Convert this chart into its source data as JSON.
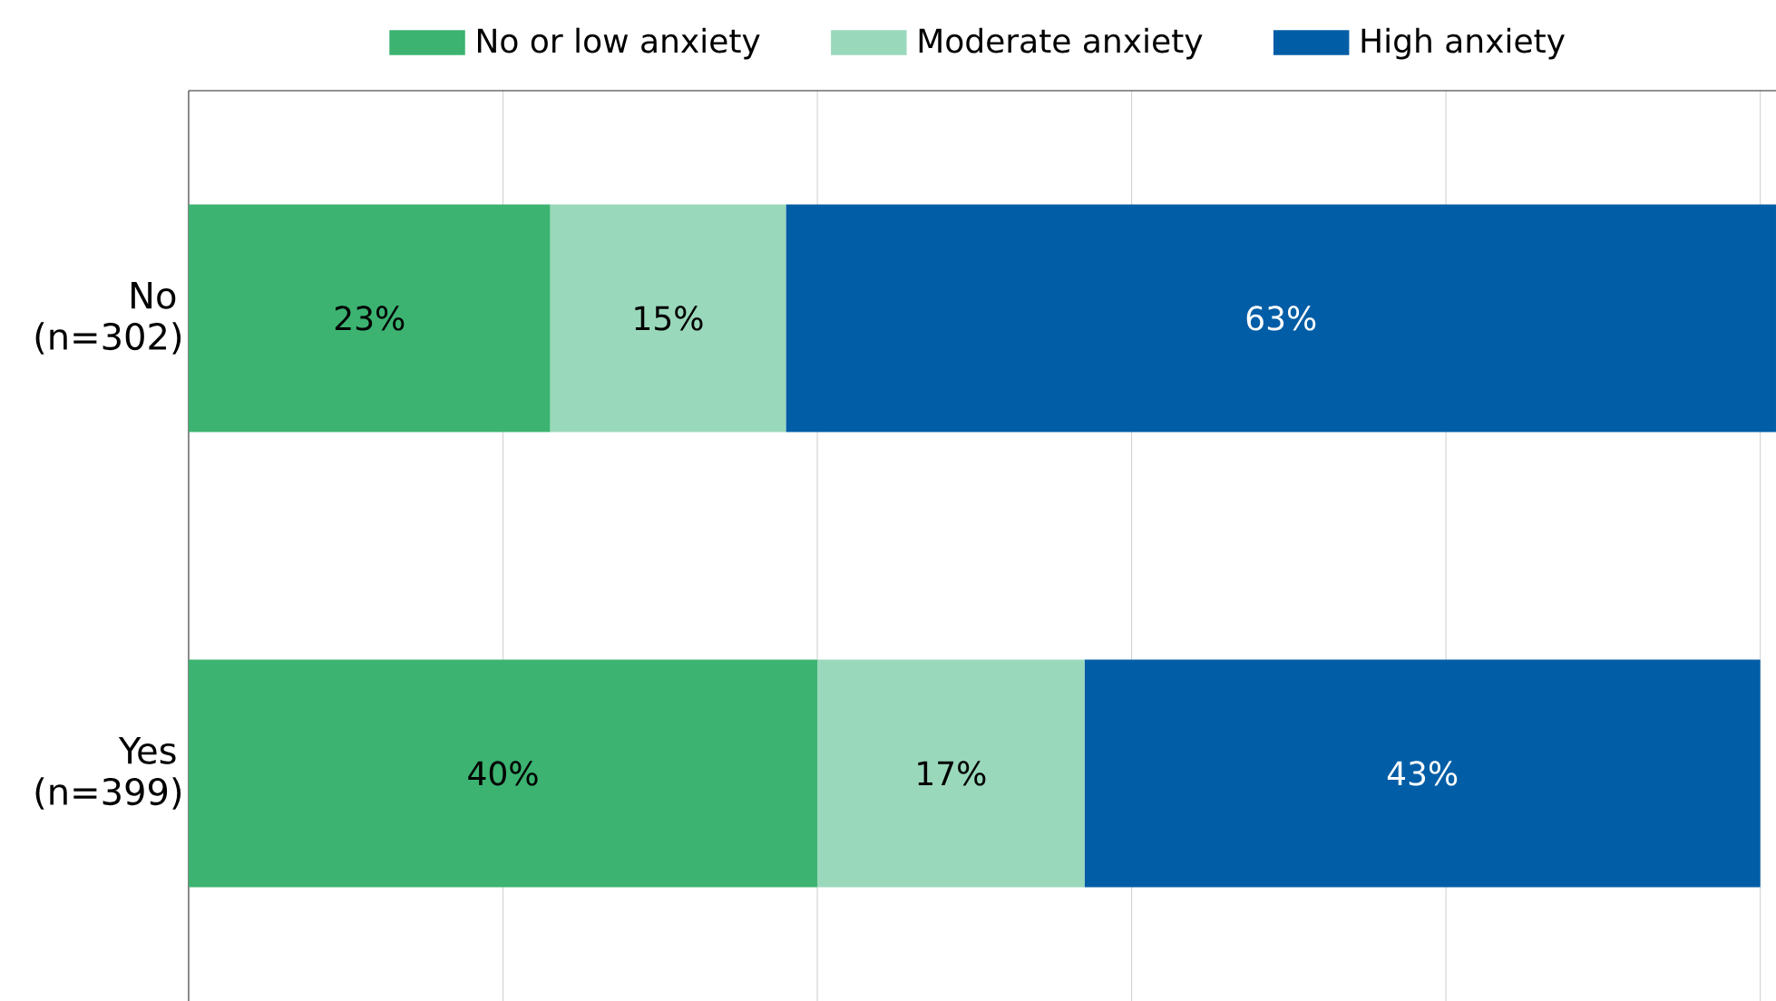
{
  "chart_data": {
    "type": "bar",
    "orientation": "horizontal",
    "stacked": true,
    "categories": [
      "No (n=302)",
      "Yes (n=399)"
    ],
    "series": [
      {
        "name": "No or low anxiety",
        "color": "#3cb371",
        "values": [
          23,
          40
        ],
        "value_labels": [
          "23%",
          "40%"
        ]
      },
      {
        "name": "Moderate anxiety",
        "color": "#9ad8bb",
        "values": [
          15,
          17
        ],
        "value_labels": [
          "15%",
          "17%"
        ]
      },
      {
        "name": "High anxiety",
        "color": "#005da6",
        "values": [
          63,
          43
        ],
        "value_labels": [
          "63%",
          "43%"
        ]
      }
    ],
    "grid": "x",
    "legend": "top",
    "tick_labels": "y"
  }
}
